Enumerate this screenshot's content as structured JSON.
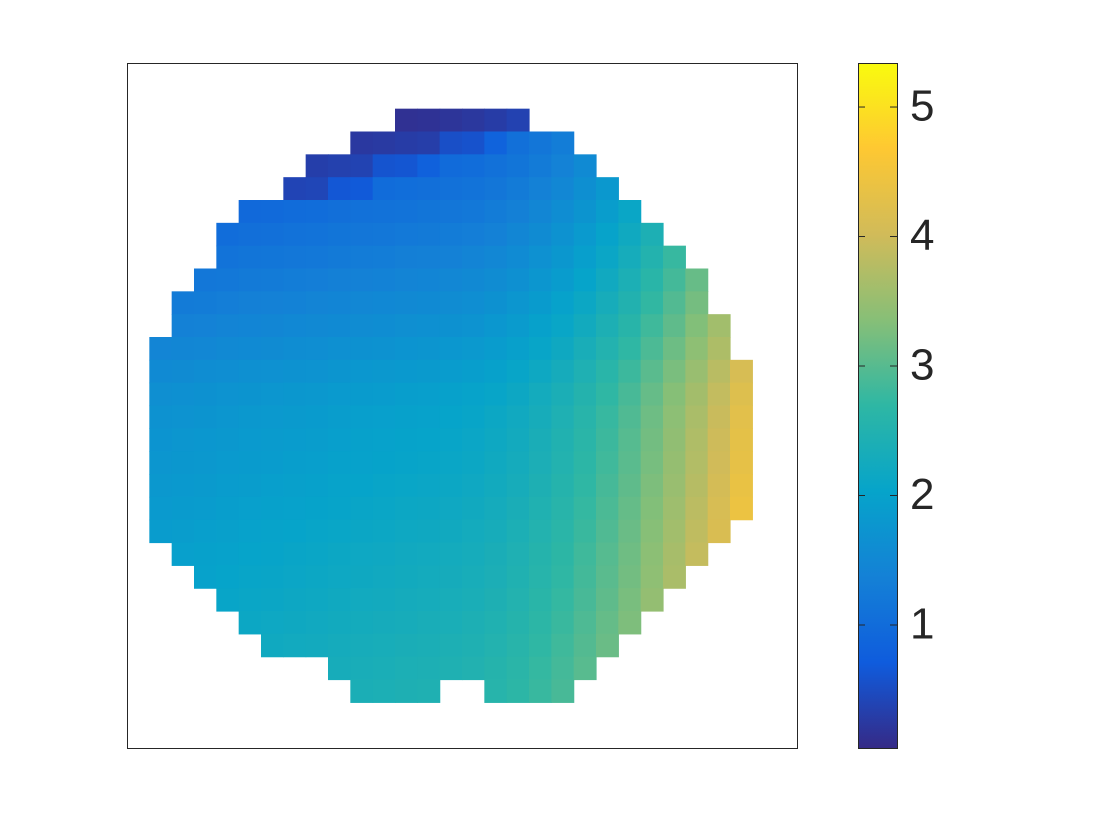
{
  "chart_data": {
    "type": "heatmap",
    "colormap": [
      "#352a87",
      "#0f5cdd",
      "#1481d6",
      "#06a4ca",
      "#2eb7a4",
      "#87bf77",
      "#d1bb59",
      "#fec832",
      "#f9fb0e"
    ],
    "clim": [
      0.05,
      5.34
    ],
    "cticks": [
      1,
      2,
      3,
      4,
      5
    ],
    "z": [
      [
        null,
        null,
        null,
        null,
        null,
        null,
        null,
        null,
        null,
        null,
        null,
        null,
        null,
        null,
        null,
        null,
        null,
        null,
        null,
        null,
        null,
        null,
        null,
        null,
        null,
        null,
        null,
        null,
        null,
        null
      ],
      [
        null,
        null,
        null,
        null,
        null,
        null,
        null,
        null,
        null,
        null,
        null,
        null,
        null,
        null,
        null,
        null,
        null,
        null,
        null,
        null,
        null,
        null,
        null,
        null,
        null,
        null,
        null,
        null,
        null,
        null
      ],
      [
        null,
        null,
        null,
        null,
        null,
        null,
        null,
        null,
        null,
        null,
        null,
        null,
        0.14,
        0.16,
        0.19,
        0.23,
        0.29,
        0.37,
        null,
        null,
        null,
        null,
        null,
        null,
        null,
        null,
        null,
        null,
        null,
        null
      ],
      [
        null,
        null,
        null,
        null,
        null,
        null,
        null,
        null,
        null,
        null,
        0.24,
        0.26,
        0.29,
        0.31,
        0.54,
        0.58,
        0.84,
        1.07,
        1.18,
        1.3,
        null,
        null,
        null,
        null,
        null,
        null,
        null,
        null,
        null,
        null
      ],
      [
        null,
        null,
        null,
        null,
        null,
        null,
        null,
        null,
        0.32,
        0.35,
        0.38,
        0.6,
        0.63,
        0.8,
        0.98,
        1.02,
        1.08,
        1.16,
        1.27,
        1.39,
        1.54,
        null,
        null,
        null,
        null,
        null,
        null,
        null,
        null,
        null
      ],
      [
        null,
        null,
        null,
        null,
        null,
        null,
        null,
        0.4,
        0.42,
        0.65,
        0.68,
        1.0,
        1.03,
        1.05,
        1.08,
        1.12,
        1.18,
        1.26,
        1.37,
        1.49,
        1.64,
        1.81,
        null,
        null,
        null,
        null,
        null,
        null,
        null,
        null
      ],
      [
        null,
        null,
        null,
        null,
        null,
        0.95,
        0.97,
        1.0,
        1.02,
        1.05,
        1.08,
        1.1,
        1.13,
        1.15,
        1.18,
        1.22,
        1.28,
        1.36,
        1.47,
        1.59,
        1.74,
        1.91,
        2.1,
        null,
        null,
        null,
        null,
        null,
        null,
        null
      ],
      [
        null,
        null,
        null,
        null,
        1.02,
        1.05,
        1.07,
        1.1,
        1.12,
        1.15,
        1.18,
        1.2,
        1.23,
        1.25,
        1.28,
        1.32,
        1.38,
        1.46,
        1.57,
        1.69,
        1.84,
        2.01,
        2.2,
        2.42,
        null,
        null,
        null,
        null,
        null,
        null
      ],
      [
        null,
        null,
        null,
        null,
        1.12,
        1.15,
        1.17,
        1.2,
        1.22,
        1.25,
        1.28,
        1.3,
        1.33,
        1.35,
        1.38,
        1.42,
        1.48,
        1.56,
        1.67,
        1.79,
        1.94,
        2.11,
        2.3,
        2.52,
        2.76,
        null,
        null,
        null,
        null,
        null
      ],
      [
        null,
        null,
        null,
        1.19,
        1.22,
        1.25,
        1.27,
        1.3,
        1.32,
        1.35,
        1.38,
        1.4,
        1.43,
        1.45,
        1.48,
        1.52,
        1.58,
        1.66,
        1.77,
        1.89,
        2.04,
        2.21,
        2.4,
        2.62,
        2.86,
        3.12,
        null,
        null,
        null,
        null
      ],
      [
        null,
        null,
        1.27,
        1.29,
        1.32,
        1.35,
        1.37,
        1.4,
        1.42,
        1.45,
        1.48,
        1.5,
        1.53,
        1.55,
        1.58,
        1.62,
        1.68,
        1.76,
        1.87,
        1.99,
        2.14,
        2.31,
        2.5,
        2.72,
        2.96,
        3.22,
        null,
        null,
        null,
        null
      ],
      [
        null,
        null,
        1.37,
        1.39,
        1.42,
        1.45,
        1.47,
        1.5,
        1.52,
        1.55,
        1.58,
        1.6,
        1.63,
        1.65,
        1.68,
        1.72,
        1.78,
        1.86,
        1.97,
        2.09,
        2.24,
        2.41,
        2.6,
        2.82,
        3.06,
        3.32,
        3.6,
        null,
        null,
        null
      ],
      [
        null,
        1.44,
        1.47,
        1.49,
        1.52,
        1.55,
        1.57,
        1.6,
        1.62,
        1.65,
        1.68,
        1.7,
        1.73,
        1.75,
        1.78,
        1.82,
        1.88,
        1.96,
        2.07,
        2.19,
        2.34,
        2.51,
        2.7,
        2.92,
        3.16,
        3.42,
        3.7,
        null,
        null,
        null
      ],
      [
        null,
        1.54,
        1.57,
        1.59,
        1.62,
        1.65,
        1.67,
        1.7,
        1.72,
        1.75,
        1.78,
        1.8,
        1.83,
        1.85,
        1.88,
        1.92,
        1.98,
        2.06,
        2.17,
        2.29,
        2.44,
        2.61,
        2.8,
        3.02,
        3.26,
        3.52,
        3.8,
        4.11,
        null,
        null
      ],
      [
        null,
        1.63,
        1.66,
        1.68,
        1.71,
        1.74,
        1.76,
        1.79,
        1.81,
        1.84,
        1.87,
        1.89,
        1.92,
        1.94,
        1.97,
        2.01,
        2.07,
        2.15,
        2.26,
        2.38,
        2.53,
        2.7,
        2.89,
        3.11,
        3.35,
        3.61,
        3.89,
        4.2,
        null,
        null
      ],
      [
        null,
        1.69,
        1.72,
        1.74,
        1.77,
        1.8,
        1.82,
        1.85,
        1.87,
        1.9,
        1.93,
        1.95,
        1.98,
        2.0,
        2.03,
        2.07,
        2.13,
        2.21,
        2.32,
        2.44,
        2.59,
        2.76,
        2.95,
        3.17,
        3.41,
        3.67,
        3.95,
        4.26,
        null,
        null
      ],
      [
        null,
        1.73,
        1.76,
        1.78,
        1.81,
        1.84,
        1.86,
        1.89,
        1.91,
        1.94,
        1.97,
        1.99,
        2.02,
        2.04,
        2.07,
        2.11,
        2.17,
        2.25,
        2.36,
        2.48,
        2.63,
        2.8,
        2.99,
        3.21,
        3.45,
        3.71,
        3.99,
        4.3,
        null,
        null
      ],
      [
        null,
        1.76,
        1.79,
        1.81,
        1.84,
        1.87,
        1.89,
        1.92,
        1.94,
        1.97,
        2.0,
        2.02,
        2.05,
        2.07,
        2.1,
        2.14,
        2.2,
        2.28,
        2.39,
        2.51,
        2.66,
        2.83,
        3.02,
        3.24,
        3.48,
        3.74,
        4.02,
        4.33,
        null,
        null
      ],
      [
        null,
        1.8,
        1.83,
        1.85,
        1.88,
        1.91,
        1.93,
        1.96,
        1.98,
        2.01,
        2.04,
        2.06,
        2.09,
        2.11,
        2.14,
        2.18,
        2.24,
        2.32,
        2.43,
        2.55,
        2.7,
        2.87,
        3.06,
        3.28,
        3.52,
        3.78,
        4.06,
        4.37,
        null,
        null
      ],
      [
        null,
        1.84,
        1.87,
        1.89,
        1.92,
        1.95,
        1.97,
        2.0,
        2.02,
        2.05,
        2.08,
        2.1,
        2.13,
        2.15,
        2.18,
        2.22,
        2.28,
        2.36,
        2.47,
        2.59,
        2.74,
        2.91,
        3.1,
        3.32,
        3.56,
        3.82,
        4.1,
        4.41,
        null,
        null
      ],
      [
        null,
        1.88,
        1.91,
        1.93,
        1.96,
        1.99,
        2.01,
        2.04,
        2.06,
        2.09,
        2.12,
        2.14,
        2.17,
        2.19,
        2.22,
        2.26,
        2.32,
        2.4,
        2.51,
        2.63,
        2.78,
        2.95,
        3.14,
        3.36,
        3.6,
        3.86,
        4.14,
        null,
        null,
        null
      ],
      [
        null,
        null,
        1.95,
        1.97,
        2.0,
        2.03,
        2.05,
        2.08,
        2.1,
        2.13,
        2.16,
        2.18,
        2.21,
        2.23,
        2.26,
        2.3,
        2.36,
        2.44,
        2.55,
        2.67,
        2.82,
        2.99,
        3.18,
        3.4,
        3.64,
        3.9,
        null,
        null,
        null,
        null
      ],
      [
        null,
        null,
        null,
        2.0,
        2.03,
        2.06,
        2.08,
        2.11,
        2.13,
        2.16,
        2.19,
        2.21,
        2.24,
        2.26,
        2.29,
        2.33,
        2.39,
        2.47,
        2.58,
        2.7,
        2.85,
        3.02,
        3.21,
        3.43,
        3.67,
        null,
        null,
        null,
        null,
        null
      ],
      [
        null,
        null,
        null,
        null,
        2.07,
        2.1,
        2.12,
        2.15,
        2.17,
        2.2,
        2.23,
        2.25,
        2.28,
        2.3,
        2.33,
        2.37,
        2.43,
        2.51,
        2.62,
        2.74,
        2.89,
        3.06,
        3.25,
        3.47,
        null,
        null,
        null,
        null,
        null,
        null
      ],
      [
        null,
        null,
        null,
        null,
        null,
        2.14,
        2.16,
        2.19,
        2.21,
        2.24,
        2.27,
        2.29,
        2.32,
        2.34,
        2.37,
        2.41,
        2.47,
        2.55,
        2.66,
        2.78,
        2.93,
        3.1,
        3.29,
        null,
        null,
        null,
        null,
        null,
        null,
        null
      ],
      [
        null,
        null,
        null,
        null,
        null,
        null,
        2.2,
        2.23,
        2.25,
        2.28,
        2.31,
        2.33,
        2.36,
        2.38,
        2.41,
        2.45,
        2.51,
        2.59,
        2.7,
        2.82,
        2.97,
        3.14,
        null,
        null,
        null,
        null,
        null,
        null,
        null,
        null
      ],
      [
        null,
        null,
        null,
        null,
        null,
        null,
        null,
        null,
        null,
        2.32,
        2.35,
        2.37,
        2.4,
        2.42,
        2.45,
        2.49,
        2.55,
        2.63,
        2.74,
        2.86,
        3.01,
        null,
        null,
        null,
        null,
        null,
        null,
        null,
        null,
        null
      ],
      [
        null,
        null,
        null,
        null,
        null,
        null,
        null,
        null,
        null,
        null,
        2.38,
        2.4,
        2.43,
        2.45,
        null,
        null,
        2.58,
        2.66,
        2.77,
        2.89,
        null,
        null,
        null,
        null,
        null,
        null,
        null,
        null,
        null,
        null
      ],
      [
        null,
        null,
        null,
        null,
        null,
        null,
        null,
        null,
        null,
        null,
        null,
        null,
        null,
        null,
        null,
        null,
        null,
        null,
        null,
        null,
        null,
        null,
        null,
        null,
        null,
        null,
        null,
        null,
        null,
        null
      ],
      [
        null,
        null,
        null,
        null,
        null,
        null,
        null,
        null,
        null,
        null,
        null,
        null,
        null,
        null,
        null,
        null,
        null,
        null,
        null,
        null,
        null,
        null,
        null,
        null,
        null,
        null,
        null,
        null,
        null,
        null
      ]
    ]
  }
}
